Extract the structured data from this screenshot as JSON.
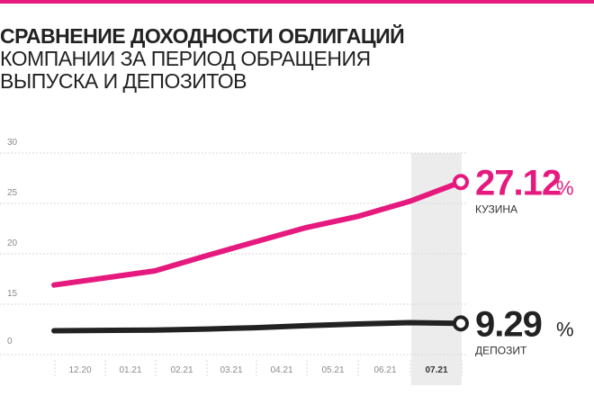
{
  "title": "СРАВНЕНИЕ ДОХОДНОСТИ ОБЛИГАЦИЙ",
  "subtitle_lines": [
    "КОМПАНИИ ЗА ПЕРИОД ОБРАЩЕНИЯ",
    "ВЫПУСКА И ДЕПОЗИТОВ"
  ],
  "colors": {
    "accent": "#e5197e",
    "dark": "#222222",
    "grid": "#d7d7d7",
    "highlight": "#ececec"
  },
  "chart_data": {
    "type": "line",
    "categories": [
      "12.20",
      "01.21",
      "02.21",
      "03.21",
      "04.21",
      "05.21",
      "06.21",
      "07.21"
    ],
    "highlighted_category": "07.21",
    "y_ticks": [
      "30",
      "25",
      "20",
      "15",
      "0"
    ],
    "series": [
      {
        "name": "КУЗИНА",
        "color": "#e5197e",
        "values": [
          16.9,
          18.3,
          19.8,
          21.2,
          22.6,
          23.7,
          25.2,
          27.12
        ],
        "end_label": "27.12",
        "unit": "%"
      },
      {
        "name": "ДЕПОЗИТ",
        "color": "#222222",
        "values": [
          7.1,
          7.3,
          7.6,
          8.0,
          8.6,
          9.1,
          9.5,
          9.29
        ],
        "end_label": "9.29",
        "unit": "%"
      }
    ]
  }
}
